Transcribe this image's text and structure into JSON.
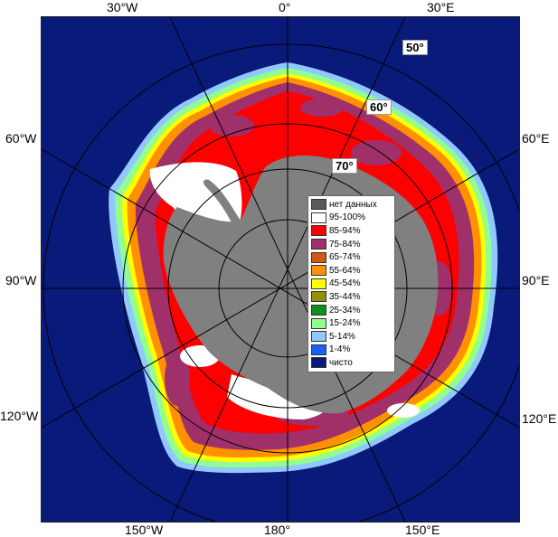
{
  "map": {
    "top_labels": [
      "30°W",
      "0°",
      "30°E"
    ],
    "bottom_labels": [
      "150°W",
      "180°",
      "150°E"
    ],
    "left_labels": [
      "60°W",
      "90°W",
      "120°W"
    ],
    "right_labels": [
      "60°E",
      "90°E",
      "120°E"
    ],
    "lat_labels": [
      "50°",
      "60°",
      "70°"
    ],
    "colors": {
      "ocean": "#0a1a7a",
      "land": "#808080",
      "no_data": "#5a5a5a"
    }
  },
  "legend": {
    "items": [
      {
        "label": "нет данных",
        "color": "#5a5a5a"
      },
      {
        "label": "95-100%",
        "color": "#ffffff"
      },
      {
        "label": "85-94%",
        "color": "#ff0000"
      },
      {
        "label": "75-84%",
        "color": "#a0306a"
      },
      {
        "label": "65-74%",
        "color": "#d05a10"
      },
      {
        "label": "55-64%",
        "color": "#ff9000"
      },
      {
        "label": "45-54%",
        "color": "#ffff00"
      },
      {
        "label": "35-44%",
        "color": "#909000"
      },
      {
        "label": "25-34%",
        "color": "#10901a"
      },
      {
        "label": "15-24%",
        "color": "#90ff90"
      },
      {
        "label": "5-14%",
        "color": "#90c8ff"
      },
      {
        "label": "1-4%",
        "color": "#1a60ff"
      },
      {
        "label": "чисто",
        "color": "#0a1a7a"
      }
    ]
  }
}
